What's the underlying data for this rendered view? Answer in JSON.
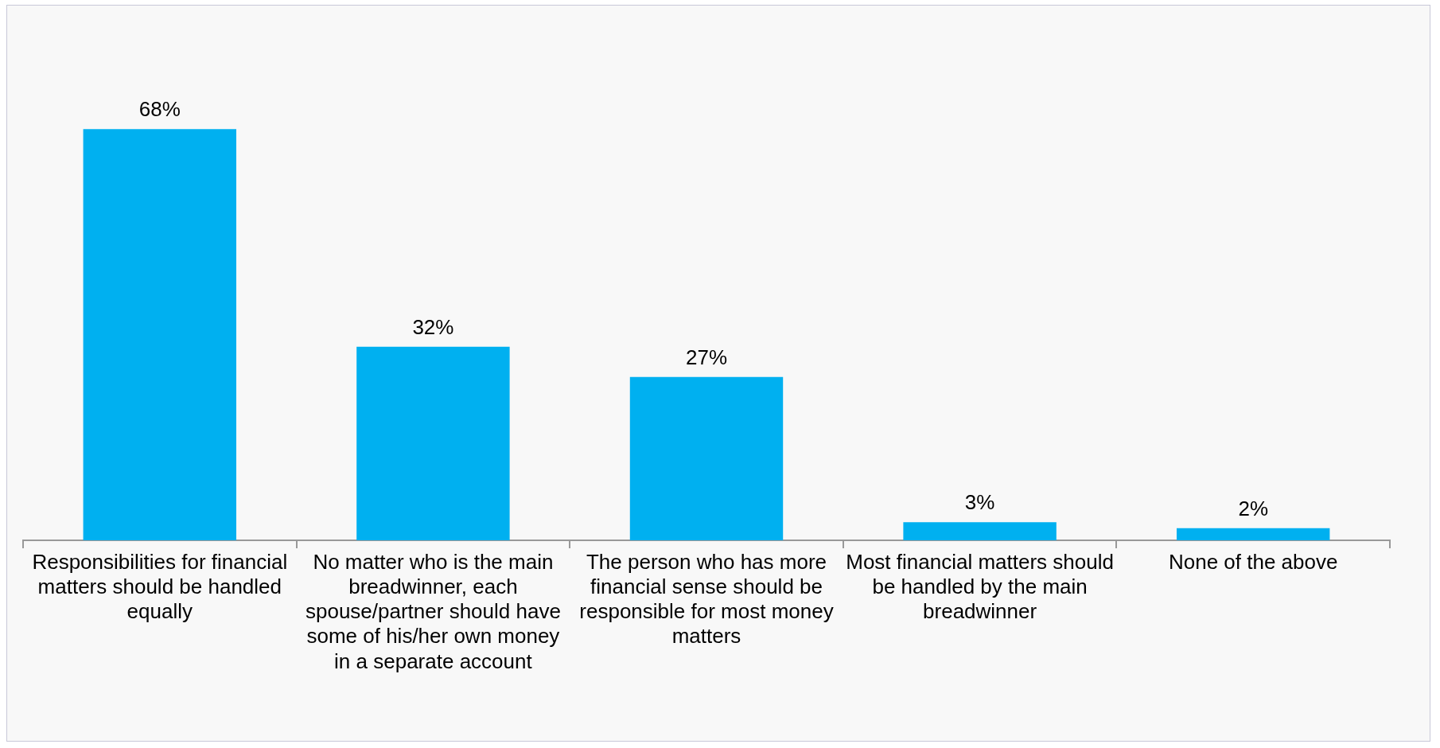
{
  "chart_data": {
    "type": "bar",
    "categories": [
      "Responsibilities for financial matters should be handled equally",
      "No matter who is the main breadwinner, each spouse/partner should have some of his/her own money in a separate account",
      "The person who has more financial sense should be responsible for most money matters",
      "Most financial matters should be handled by the main breadwinner",
      "None of the above"
    ],
    "values": [
      68,
      32,
      27,
      3,
      2
    ],
    "value_labels": [
      "68%",
      "32%",
      "27%",
      "3%",
      "2%"
    ],
    "color": "#00b0f0",
    "grid": false,
    "legend": false
  }
}
